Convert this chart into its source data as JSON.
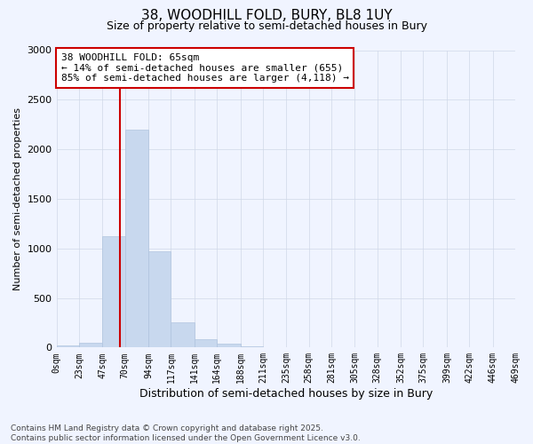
{
  "title": "38, WOODHILL FOLD, BURY, BL8 1UY",
  "subtitle": "Size of property relative to semi-detached houses in Bury",
  "xlabel": "Distribution of semi-detached houses by size in Bury",
  "ylabel": "Number of semi-detached properties",
  "annotation_title": "38 WOODHILL FOLD: 65sqm",
  "annotation_line1": "← 14% of semi-detached houses are smaller (655)",
  "annotation_line2": "85% of semi-detached houses are larger (4,118) →",
  "property_size": 65,
  "bin_edges": [
    0,
    23,
    47,
    70,
    94,
    117,
    141,
    164,
    188,
    211,
    235,
    258,
    281,
    305,
    328,
    352,
    375,
    399,
    422,
    446,
    469
  ],
  "bin_labels": [
    "0sqm",
    "23sqm",
    "47sqm",
    "70sqm",
    "94sqm",
    "117sqm",
    "141sqm",
    "164sqm",
    "188sqm",
    "211sqm",
    "235sqm",
    "258sqm",
    "281sqm",
    "305sqm",
    "328sqm",
    "352sqm",
    "375sqm",
    "399sqm",
    "422sqm",
    "446sqm",
    "469sqm"
  ],
  "bar_values": [
    25,
    50,
    1120,
    2200,
    975,
    255,
    85,
    35,
    15,
    5,
    2,
    1,
    0,
    0,
    0,
    0,
    0,
    0,
    0,
    0
  ],
  "bar_color": "#c8d8ee",
  "bar_edge_color": "#b0c4de",
  "vline_color": "#cc0000",
  "vline_x": 65,
  "annotation_box_color": "#cc0000",
  "annotation_fill": "#ffffff",
  "ylim": [
    0,
    3000
  ],
  "yticks": [
    0,
    500,
    1000,
    1500,
    2000,
    2500,
    3000
  ],
  "footer_line1": "Contains HM Land Registry data © Crown copyright and database right 2025.",
  "footer_line2": "Contains public sector information licensed under the Open Government Licence v3.0.",
  "bg_color": "#f0f4ff",
  "grid_color": "#d0d8e8"
}
